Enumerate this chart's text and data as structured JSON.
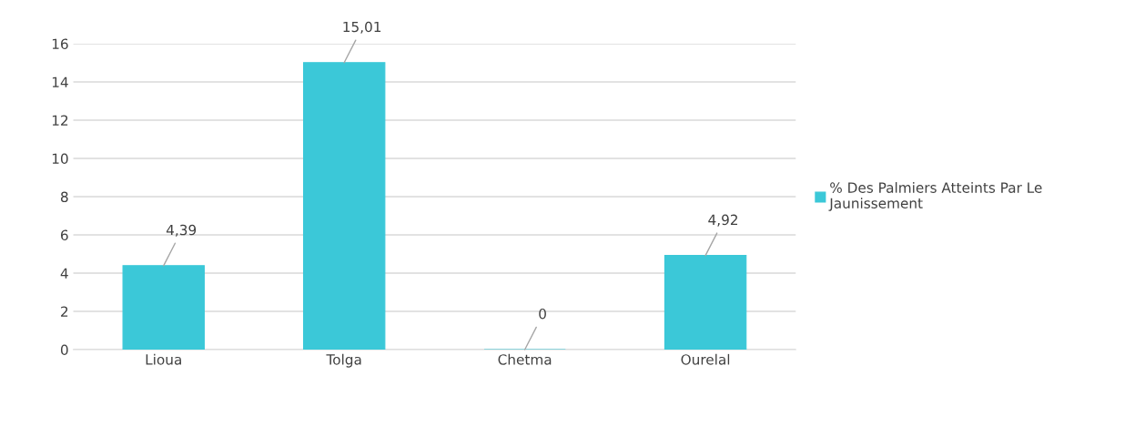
{
  "chart_data": {
    "type": "bar",
    "categories": [
      "Lioua",
      "Tolga",
      "Chetma",
      "Ourelal"
    ],
    "series": [
      {
        "name": "% Des Palmiers Atteints Par Le Jaunissement",
        "color": "#3bc8d8",
        "values": [
          4.39,
          15.01,
          0,
          4.92
        ],
        "value_labels": [
          "4,39",
          "15,01",
          "0",
          "4,92"
        ]
      }
    ],
    "ylim": [
      0,
      16
    ],
    "yticks": [
      0,
      2,
      4,
      6,
      8,
      10,
      12,
      14,
      16
    ],
    "grid": "y",
    "legend": "right"
  }
}
